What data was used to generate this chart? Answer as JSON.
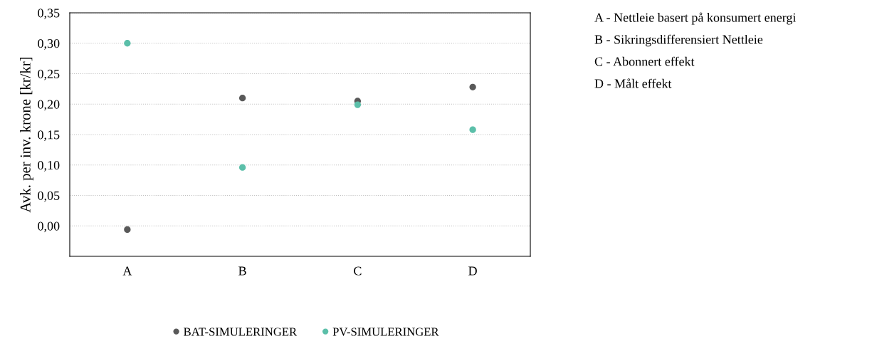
{
  "chart_data": {
    "type": "scatter",
    "ylabel": "Avk. per inv. krone [kr/kr]",
    "categories": [
      "A",
      "B",
      "C",
      "D"
    ],
    "series": [
      {
        "name": "BAT-SIMULERINGER",
        "color": "#595959",
        "values": [
          -0.006,
          0.21,
          0.205,
          0.228
        ]
      },
      {
        "name": "PV-SIMULERINGER",
        "color": "#5bbfa9",
        "values": [
          0.3,
          0.096,
          0.199,
          0.158
        ]
      }
    ],
    "ylim": [
      -0.05,
      0.35
    ],
    "yticks": [
      {
        "value": 0,
        "label": "0,00"
      },
      {
        "value": 0.05,
        "label": "0,05"
      },
      {
        "value": 0.1,
        "label": "0,10"
      },
      {
        "value": 0.15,
        "label": "0,15"
      },
      {
        "value": 0.2,
        "label": "0,20"
      },
      {
        "value": 0.25,
        "label": "0,25"
      },
      {
        "value": 0.3,
        "label": "0,30"
      },
      {
        "value": 0.35,
        "label": "0,35"
      }
    ],
    "grid": "y",
    "legend": "bottom",
    "marker": "circle",
    "annotations": [
      "A - Nettleie basert på konsumert energi",
      "B - Sikringsdifferensiert Nettleie",
      "C - Abonnert effekt",
      "D - Målt effekt"
    ]
  }
}
